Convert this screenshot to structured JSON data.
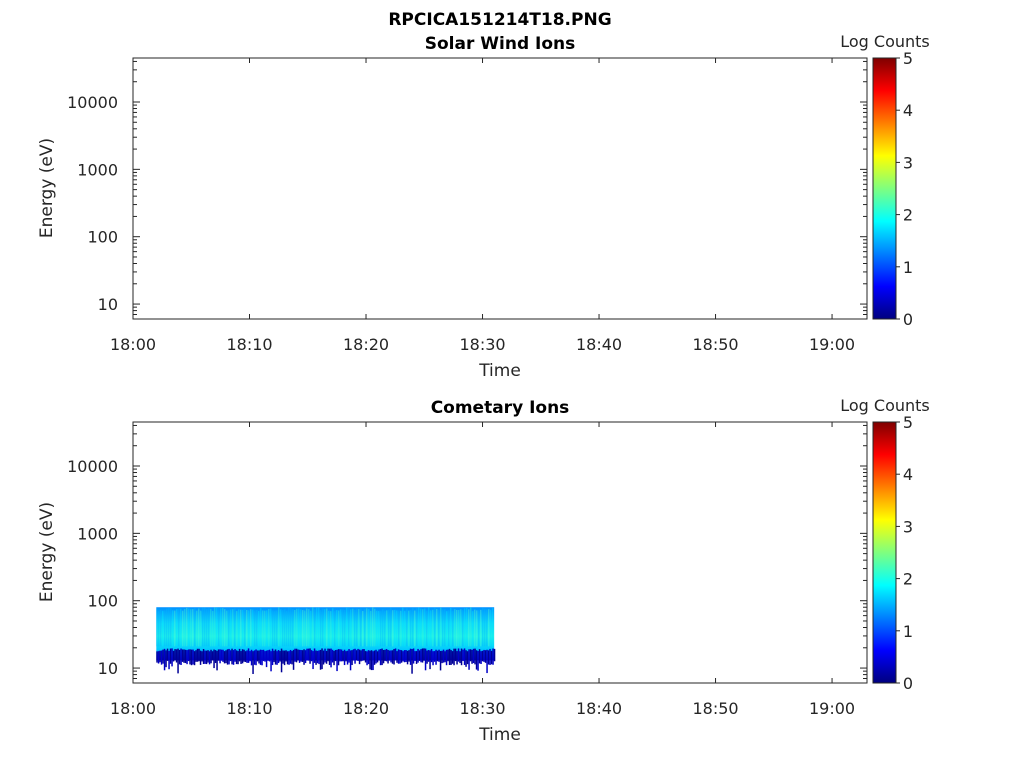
{
  "figure": {
    "title": "RPCICA151214T18.PNG"
  },
  "colormap": [
    "#00007f",
    "#0000ff",
    "#007fff",
    "#00ffff",
    "#7fff7f",
    "#ffff00",
    "#ff7f00",
    "#ff0000",
    "#7f0000"
  ],
  "chart_data": [
    {
      "type": "heatmap",
      "title": "Solar Wind Ions",
      "xlabel": "Time",
      "ylabel": "Energy (eV)",
      "x_ticks": [
        "18:00",
        "18:10",
        "18:20",
        "18:30",
        "18:40",
        "18:50",
        "19:00"
      ],
      "x_range": [
        "18:00",
        "19:03"
      ],
      "y_scale": "log",
      "y_ticks": [
        10,
        100,
        1000,
        10000
      ],
      "y_tick_labels": [
        "10",
        "100",
        "1000",
        "10000"
      ],
      "y_range": [
        6,
        45000
      ],
      "colorbar": {
        "label": "Log Counts",
        "range": [
          0,
          5
        ],
        "ticks": [
          "0",
          "1",
          "2",
          "3",
          "4",
          "5"
        ]
      },
      "data_block": null
    },
    {
      "type": "heatmap",
      "title": "Cometary Ions",
      "xlabel": "Time",
      "ylabel": "Energy (eV)",
      "x_ticks": [
        "18:00",
        "18:10",
        "18:20",
        "18:30",
        "18:40",
        "18:50",
        "19:00"
      ],
      "x_range": [
        "18:00",
        "19:03"
      ],
      "y_scale": "log",
      "y_ticks": [
        10,
        100,
        1000,
        10000
      ],
      "y_tick_labels": [
        "10",
        "100",
        "1000",
        "10000"
      ],
      "y_range": [
        6,
        45000
      ],
      "colorbar": {
        "label": "Log Counts",
        "range": [
          0,
          5
        ],
        "ticks": [
          "0",
          "1",
          "2",
          "3",
          "4",
          "5"
        ]
      },
      "data_block": {
        "time_start": "18:02",
        "time_end": "18:31",
        "energy_min": 13,
        "energy_max": 80,
        "typical_log_counts": 1.8,
        "low_energy_edge_log_counts": 0.5
      }
    }
  ]
}
